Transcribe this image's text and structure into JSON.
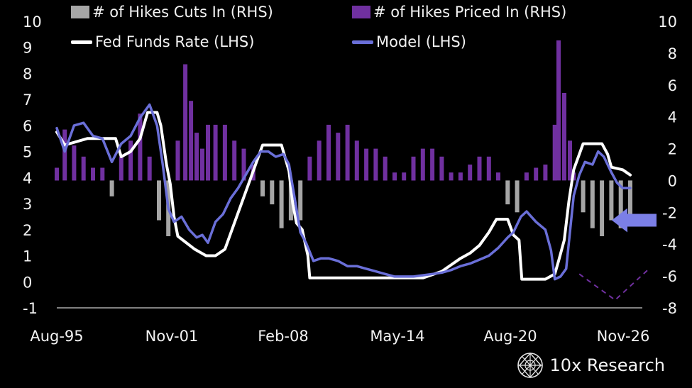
{
  "legend": {
    "cuts_label": "# of Hikes Cuts In (RHS)",
    "priced_label": "# of Hikes Priced In (RHS)",
    "ffr_label": "Fed Funds Rate (LHS)",
    "model_label": "Model (LHS)"
  },
  "brand": {
    "text": "10x Research",
    "icon": "network-globe-icon"
  },
  "colors": {
    "background": "#000000",
    "cuts": "#a6a6a6",
    "priced": "#7030a0",
    "ffr": "#ffffff",
    "model": "#6a6fd8",
    "arrow": "#7b7fe6",
    "dashed_v": "#7030a0"
  },
  "chart_data": {
    "type": "line+bar",
    "x_ticks": [
      "Aug-95",
      "Nov-01",
      "Feb-08",
      "May-14",
      "Aug-20",
      "Nov-26"
    ],
    "x_tick_years": [
      1995.58,
      2001.83,
      2008.08,
      2014.33,
      2020.58,
      2026.83
    ],
    "left_axis": {
      "ticks": [
        "-1",
        "0",
        "1",
        "2",
        "3",
        "4",
        "5",
        "6",
        "7",
        "8",
        "9",
        "10"
      ],
      "ylim": [
        -1,
        10
      ]
    },
    "right_axis": {
      "ticks": [
        "-8",
        "-6",
        "-4",
        "-2",
        "0",
        "2",
        "4",
        "6",
        "8",
        "10"
      ],
      "ylim": [
        -8,
        10
      ]
    },
    "grid": false,
    "legend_position": "top",
    "series": [
      {
        "name": "Fed Funds Rate (LHS)",
        "axis": "left",
        "x": [
          1995.58,
          1996.0,
          1997.2,
          1998.7,
          1999.0,
          1999.5,
          2000.0,
          2000.4,
          2000.9,
          2001.1,
          2001.4,
          2001.6,
          2001.8,
          2002.0,
          2002.9,
          2003.5,
          2004.0,
          2004.5,
          2005.0,
          2005.5,
          2006.0,
          2006.5,
          2007.5,
          2007.7,
          2007.9,
          2008.1,
          2008.3,
          2008.6,
          2008.9,
          2009.0,
          2012.0,
          2015.0,
          2016.0,
          2017.0,
          2017.5,
          2018.0,
          2018.5,
          2018.9,
          2019.5,
          2019.8,
          2020.1,
          2020.25,
          2021.5,
          2022.0,
          2022.2,
          2022.5,
          2022.75,
          2023.0,
          2023.5,
          2024.5,
          2024.8,
          2025.0,
          2025.6,
          2026.0
        ],
        "values": [
          5.75,
          5.25,
          5.5,
          5.5,
          4.8,
          5.0,
          5.5,
          6.5,
          6.5,
          6.0,
          4.5,
          3.75,
          2.5,
          1.75,
          1.25,
          1.0,
          1.0,
          1.25,
          2.25,
          3.25,
          4.25,
          5.25,
          5.25,
          4.75,
          4.25,
          3.0,
          2.25,
          2.0,
          1.0,
          0.15,
          0.15,
          0.15,
          0.4,
          0.9,
          1.1,
          1.4,
          1.9,
          2.4,
          2.4,
          1.8,
          1.6,
          0.1,
          0.1,
          0.3,
          0.8,
          1.6,
          3.1,
          4.3,
          5.3,
          5.3,
          4.9,
          4.4,
          4.3,
          4.1
        ]
      },
      {
        "name": "Model (LHS)",
        "axis": "left",
        "x": [
          1995.58,
          1996.0,
          1996.5,
          1997.0,
          1997.5,
          1998.0,
          1998.5,
          1999.0,
          1999.5,
          2000.0,
          2000.5,
          2000.9,
          2001.2,
          2001.5,
          2001.8,
          2002.2,
          2002.6,
          2003.0,
          2003.3,
          2003.6,
          2004.0,
          2004.4,
          2004.8,
          2005.2,
          2005.6,
          2006.0,
          2006.4,
          2006.8,
          2007.2,
          2007.6,
          2007.9,
          2008.2,
          2008.5,
          2008.8,
          2009.2,
          2009.6,
          2010.0,
          2010.5,
          2011.0,
          2011.5,
          2012.0,
          2012.5,
          2013.0,
          2013.5,
          2014.0,
          2014.5,
          2015.0,
          2015.5,
          2016.0,
          2016.5,
          2017.0,
          2017.5,
          2018.0,
          2018.5,
          2019.0,
          2019.5,
          2019.8,
          2020.0,
          2020.2,
          2020.5,
          2021.0,
          2021.5,
          2021.8,
          2022.0,
          2022.3,
          2022.6,
          2023.0,
          2023.3,
          2023.6,
          2024.0,
          2024.3,
          2024.6,
          2025.0,
          2025.3,
          2025.6,
          2026.0
        ],
        "values": [
          5.9,
          5.0,
          6.0,
          6.1,
          5.6,
          5.5,
          4.6,
          5.3,
          5.6,
          6.3,
          6.8,
          6.0,
          4.5,
          2.8,
          2.3,
          2.5,
          2.0,
          1.7,
          1.8,
          1.5,
          2.3,
          2.6,
          3.2,
          3.6,
          4.1,
          4.6,
          5.0,
          5.0,
          4.8,
          4.9,
          4.5,
          3.2,
          1.9,
          1.5,
          0.8,
          0.9,
          0.9,
          0.8,
          0.6,
          0.6,
          0.5,
          0.4,
          0.3,
          0.2,
          0.2,
          0.2,
          0.25,
          0.3,
          0.35,
          0.45,
          0.6,
          0.7,
          0.85,
          1.0,
          1.3,
          1.7,
          1.9,
          2.2,
          2.5,
          2.7,
          2.3,
          2.0,
          1.2,
          0.1,
          0.2,
          0.5,
          3.3,
          4.1,
          4.6,
          4.5,
          5.0,
          4.8,
          4.2,
          3.8,
          3.6,
          3.6
        ]
      }
    ],
    "bars": {
      "name": "# of Hikes Priced In (RHS) / # of Hikes Cuts In (RHS)",
      "axis": "right",
      "x": [
        1995.58,
        1996.0,
        1996.5,
        1997.0,
        1997.5,
        1998.0,
        1998.5,
        1999.0,
        1999.5,
        2000.0,
        2000.5,
        2001.0,
        2001.5,
        2002.0,
        2002.4,
        2002.7,
        2003.0,
        2003.3,
        2003.6,
        2004.0,
        2004.5,
        2005.0,
        2005.5,
        2006.0,
        2006.5,
        2007.0,
        2007.5,
        2008.0,
        2008.5,
        2009.0,
        2009.5,
        2010.0,
        2010.5,
        2011.0,
        2011.5,
        2012.0,
        2012.5,
        2013.0,
        2013.5,
        2014.0,
        2014.5,
        2015.0,
        2015.5,
        2016.0,
        2016.5,
        2017.0,
        2017.5,
        2018.0,
        2018.5,
        2019.0,
        2019.5,
        2020.0,
        2020.5,
        2021.0,
        2021.5,
        2022.0,
        2022.2,
        2022.5,
        2022.8,
        2023.0,
        2023.5,
        2024.0,
        2024.5,
        2025.0,
        2025.5,
        2026.0
      ],
      "values": [
        0.8,
        3.2,
        2.2,
        1.5,
        0.8,
        0.8,
        -1.0,
        1.5,
        2.5,
        4.2,
        1.5,
        -2.5,
        -3.5,
        2.5,
        7.3,
        5.0,
        3.0,
        2.0,
        3.5,
        3.5,
        3.5,
        2.5,
        2.0,
        1.0,
        -1.0,
        -1.5,
        -3.0,
        -2.5,
        -2.5,
        1.5,
        2.5,
        3.5,
        3.0,
        3.5,
        2.5,
        2.0,
        2.0,
        1.5,
        0.5,
        0.5,
        1.5,
        2.0,
        2.0,
        1.5,
        0.5,
        0.5,
        1.0,
        1.5,
        1.5,
        0.5,
        -1.5,
        -2.0,
        0.5,
        0.8,
        1.0,
        3.5,
        8.8,
        5.5,
        2.5,
        0.5,
        -2.0,
        -3.0,
        -3.5,
        -2.5,
        -3.0,
        -2.5
      ]
    },
    "annotations": [
      {
        "type": "arrow",
        "direction": "left",
        "near": "right-axis",
        "value_rhs": -2.5
      },
      {
        "type": "dashed-v",
        "x": [
          2023.3,
          2025.2,
          2027.0
        ],
        "values_lhs": [
          0.3,
          -0.7,
          0.5
        ]
      }
    ]
  }
}
